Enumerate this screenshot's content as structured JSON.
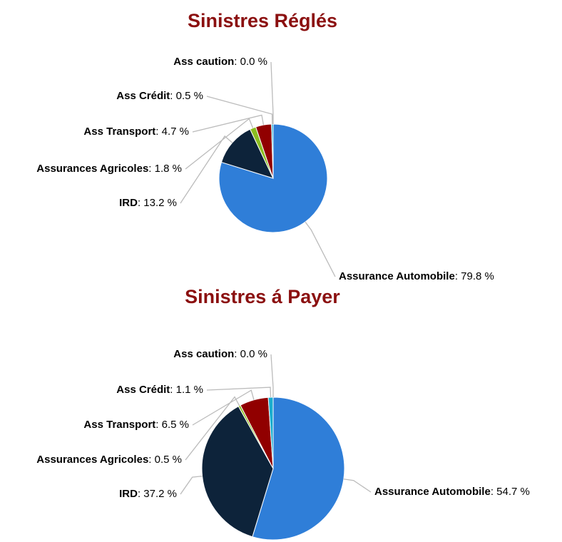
{
  "chart_data": [
    {
      "type": "pie",
      "title": "Sinistres Réglés",
      "categories": [
        "Assurance Automobile",
        "IRD",
        "Assurances Agricoles",
        "Ass Transport",
        "Ass Crédit",
        "Ass caution"
      ],
      "values": [
        79.8,
        13.2,
        1.8,
        4.7,
        0.5,
        0.0
      ],
      "value_labels": [
        ": 79.8 %",
        ": 13.2 %",
        ": 1.8 %",
        ": 4.7 %",
        ": 0.5 %",
        ": 0.0 %"
      ],
      "colors": [
        "#2f7ed8",
        "#0d233a",
        "#8bbc21",
        "#910000",
        "#1aadce",
        "#492970"
      ]
    },
    {
      "type": "pie",
      "title": "Sinistres á Payer",
      "categories": [
        "Assurance Automobile",
        "IRD",
        "Assurances Agricoles",
        "Ass Transport",
        "Ass Crédit",
        "Ass caution"
      ],
      "values": [
        54.7,
        37.2,
        0.5,
        6.5,
        1.1,
        0.0
      ],
      "value_labels": [
        ": 54.7 %",
        ": 37.2 %",
        ": 0.5 %",
        ": 6.5 %",
        ": 1.1 %",
        ": 0.0 %"
      ],
      "colors": [
        "#2f7ed8",
        "#0d233a",
        "#8bbc21",
        "#910000",
        "#1aadce",
        "#492970"
      ]
    }
  ]
}
